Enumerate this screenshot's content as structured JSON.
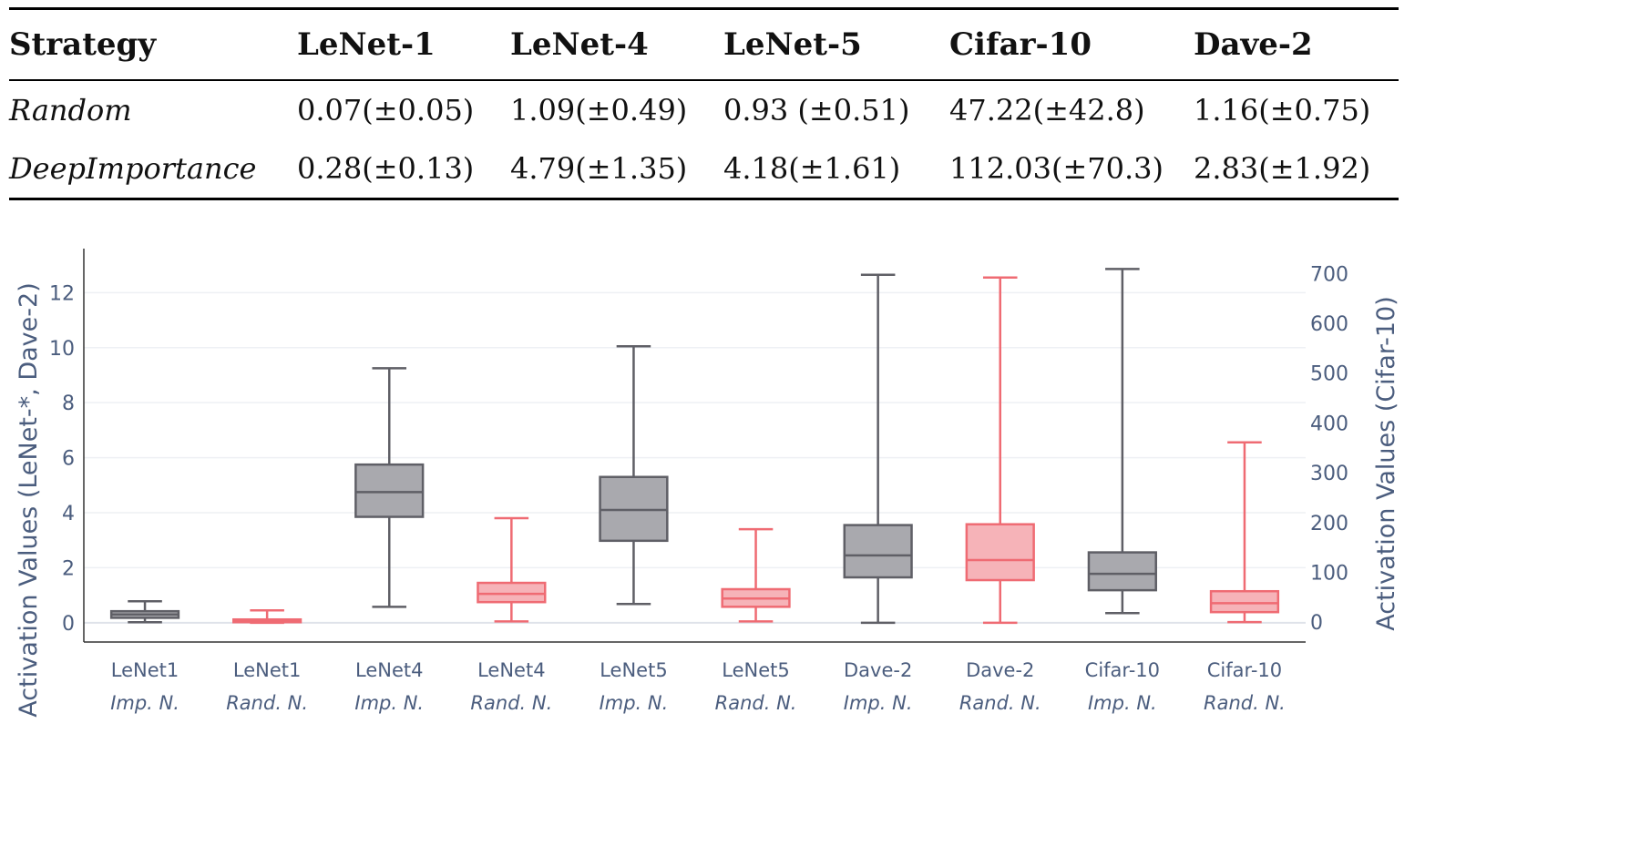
{
  "table": {
    "headers": [
      "Strategy",
      "LeNet-1",
      "LeNet-4",
      "LeNet-5",
      "Cifar-10",
      "Dave-2"
    ],
    "rows": [
      [
        "Random",
        "0.07(±0.05)",
        "1.09(±0.49)",
        "0.93 (±0.51)",
        "47.22(±42.8)",
        "1.16(±0.75)"
      ],
      [
        "DeepImportance",
        "0.28(±0.13)",
        "4.79(±1.35)",
        "4.18(±1.61)",
        "112.03(±70.3)",
        "2.83(±1.92)"
      ]
    ]
  },
  "chart_data": {
    "type": "box",
    "ylabel_left": "Activation Values (LeNet-*, Dave-2)",
    "ylabel_right": "Activation Values (Cifar-10)",
    "ylim_left": [
      -0.7,
      13.6
    ],
    "ylim_right": [
      -40,
      750
    ],
    "yticks_left": [
      0,
      2,
      4,
      6,
      8,
      10,
      12
    ],
    "yticks_right": [
      0,
      100,
      200,
      300,
      400,
      500,
      600,
      700
    ],
    "grid": true,
    "colors": {
      "importance": "#5f5f66",
      "importance_fill": "#a9a9ae",
      "random": "#ef6b73",
      "random_fill": "#f6b3b8"
    },
    "boxes": [
      {
        "category": "LeNet1",
        "sub": "Imp. N.",
        "group": "importance",
        "axis": "left",
        "min": 0.02,
        "q1": 0.18,
        "median": 0.3,
        "q3": 0.42,
        "max": 0.78
      },
      {
        "category": "LeNet1",
        "sub": "Rand. N.",
        "group": "random",
        "axis": "left",
        "min": 0.0,
        "q1": 0.03,
        "median": 0.07,
        "q3": 0.12,
        "max": 0.45
      },
      {
        "category": "LeNet4",
        "sub": "Imp. N.",
        "group": "importance",
        "axis": "left",
        "min": 0.58,
        "q1": 3.85,
        "median": 4.75,
        "q3": 5.75,
        "max": 9.25
      },
      {
        "category": "LeNet4",
        "sub": "Rand. N.",
        "group": "random",
        "axis": "left",
        "min": 0.05,
        "q1": 0.75,
        "median": 1.05,
        "q3": 1.45,
        "max": 3.8
      },
      {
        "category": "LeNet5",
        "sub": "Imp. N.",
        "group": "importance",
        "axis": "left",
        "min": 0.68,
        "q1": 2.98,
        "median": 4.1,
        "q3": 5.3,
        "max": 10.05
      },
      {
        "category": "LeNet5",
        "sub": "Rand. N.",
        "group": "random",
        "axis": "left",
        "min": 0.05,
        "q1": 0.58,
        "median": 0.88,
        "q3": 1.22,
        "max": 3.4
      },
      {
        "category": "Dave-2",
        "sub": "Imp. N.",
        "group": "importance",
        "axis": "left",
        "min": 0.0,
        "q1": 1.65,
        "median": 2.45,
        "q3": 3.55,
        "max": 12.65
      },
      {
        "category": "Dave-2",
        "sub": "Rand. N.",
        "group": "random",
        "axis": "left",
        "min": 0.0,
        "q1": 1.55,
        "median": 2.28,
        "q3": 3.58,
        "max": 12.55
      },
      {
        "category": "Cifar-10",
        "sub": "Imp. N.",
        "group": "importance",
        "axis": "right",
        "min": 18,
        "q1": 64,
        "median": 97,
        "q3": 140,
        "max": 709
      },
      {
        "category": "Cifar-10",
        "sub": "Rand. N.",
        "group": "random",
        "axis": "right",
        "min": 0,
        "q1": 20,
        "median": 38,
        "q3": 62,
        "max": 361
      }
    ]
  }
}
